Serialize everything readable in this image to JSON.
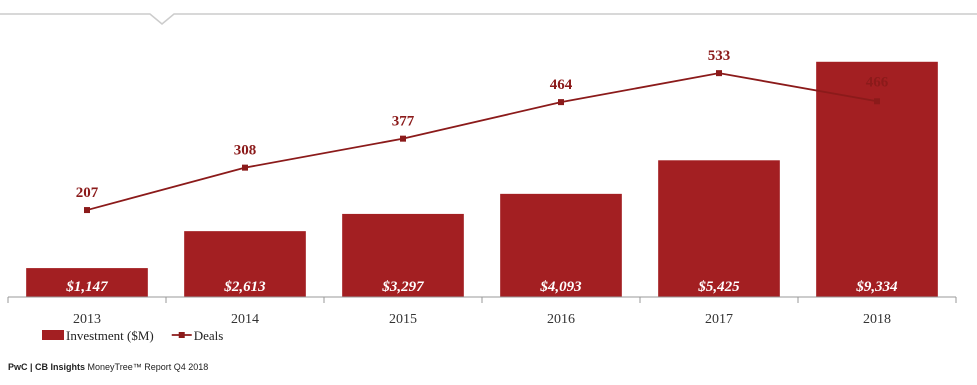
{
  "chart_data": {
    "type": "bar",
    "categories": [
      "2013",
      "2014",
      "2015",
      "2016",
      "2017",
      "2018"
    ],
    "series": [
      {
        "name": "Investment ($M)",
        "color": "#a31f22",
        "values": [
          1147,
          2613,
          3297,
          4093,
          5425,
          9334
        ],
        "value_labels": [
          "$1,147",
          "$2,613",
          "$3,297",
          "$4,093",
          "$5,425",
          "$9,334"
        ]
      },
      {
        "name": "Deals",
        "type": "line",
        "axis": "y2",
        "color": "#8b1a1a",
        "values": [
          207,
          308,
          377,
          464,
          533,
          466
        ]
      }
    ],
    "ylim": [
      0,
      10000
    ],
    "y2lim": [
      0,
      600
    ],
    "legend": "bottom-left"
  },
  "footer": {
    "source": "PwC | CB Insights",
    "report": "MoneyTree™ Report Q4 2018"
  }
}
